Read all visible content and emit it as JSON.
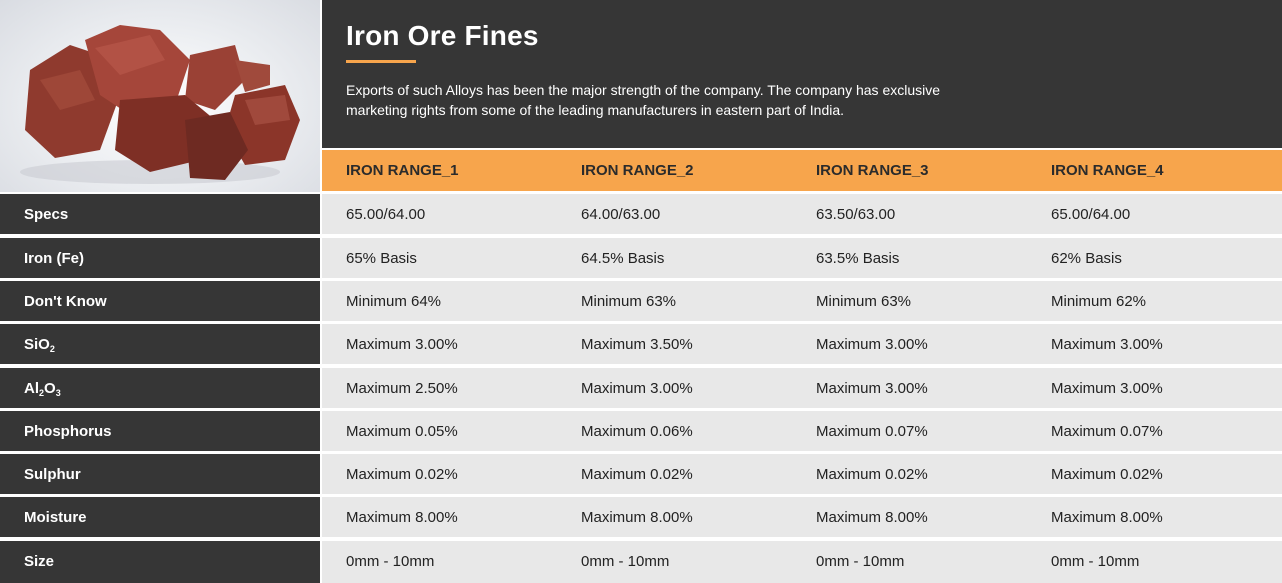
{
  "header": {
    "title": "Iron Ore Fines",
    "description": "Exports of such Alloys has been the major strength of the company. The company has exclusive marketing rights from some of the leading manufacturers in eastern part of India."
  },
  "colors": {
    "accent": "#f7a54c",
    "dark": "#363636",
    "cell_bg": "#e8e8e8"
  },
  "columns": [
    "IRON RANGE_1",
    "IRON RANGE_2",
    "IRON RANGE_3",
    "IRON RANGE_4"
  ],
  "rows": [
    {
      "label": "Specs",
      "values": [
        "65.00/64.00",
        "64.00/63.00",
        "63.50/63.00",
        "65.00/64.00"
      ]
    },
    {
      "label": "Iron (Fe)",
      "values": [
        "65% Basis",
        "64.5% Basis",
        "63.5% Basis",
        "62% Basis"
      ]
    },
    {
      "label": "Don't Know",
      "values": [
        "Minimum 64%",
        "Minimum 63%",
        "Minimum 63%",
        "Minimum 62%"
      ]
    },
    {
      "label_parts": [
        "SiO",
        "2",
        ""
      ],
      "values": [
        "Maximum 3.00%",
        "Maximum 3.50%",
        "Maximum 3.00%",
        "Maximum 3.00%"
      ]
    },
    {
      "label_parts": [
        "Al",
        "2",
        "O",
        "3"
      ],
      "values": [
        "Maximum 2.50%",
        "Maximum 3.00%",
        "Maximum 3.00%",
        "Maximum 3.00%"
      ]
    },
    {
      "label": "Phosphorus",
      "values": [
        "Maximum 0.05%",
        "Maximum 0.06%",
        "Maximum 0.07%",
        "Maximum 0.07%"
      ]
    },
    {
      "label": "Sulphur",
      "values": [
        "Maximum 0.02%",
        "Maximum 0.02%",
        "Maximum 0.02%",
        "Maximum 0.02%"
      ]
    },
    {
      "label": "Moisture",
      "values": [
        "Maximum 8.00%",
        "Maximum 8.00%",
        "Maximum 8.00%",
        "Maximum 8.00%"
      ]
    },
    {
      "label": "Size",
      "values": [
        "0mm - 10mm",
        "0mm - 10mm",
        "0mm - 10mm",
        "0mm - 10mm"
      ]
    }
  ]
}
